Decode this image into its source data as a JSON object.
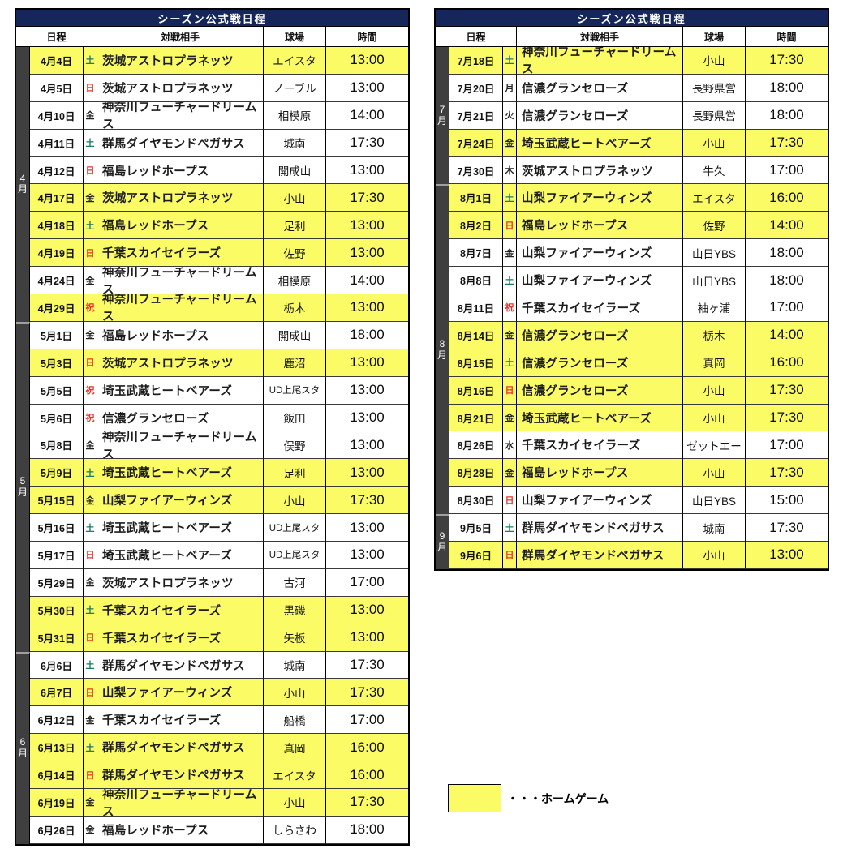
{
  "colors": {
    "title_bg": "#14265a",
    "title_text": "#ffffff",
    "home_row_bg": "#fbfb66",
    "away_row_bg": "#ffffff",
    "month_spine_bg": "#3f3f3f",
    "month_spine_text": "#ffffff",
    "saturday_text": "#1c7a66",
    "sunday_holiday_text": "#e8332b",
    "border": "#000000"
  },
  "legend": {
    "label": "・・・ホームゲーム",
    "swatch_color": "#fbfb66"
  },
  "tables": [
    {
      "title": "シーズン公式戦日程",
      "columns": {
        "date": "日程",
        "opponent": "対戦相手",
        "stadium": "球場",
        "time": "時間"
      },
      "months": [
        {
          "label": "4月",
          "rows": 10
        },
        {
          "label": "5月",
          "rows": 12
        },
        {
          "label": "6月",
          "rows": 7
        }
      ],
      "rows": [
        {
          "date": "4月4日",
          "day": "土",
          "day_type": "sat",
          "opponent": "茨城アストロプラネッツ",
          "stadium": "エイスタ",
          "time": "13:00",
          "home": true
        },
        {
          "date": "4月5日",
          "day": "日",
          "day_type": "sun",
          "opponent": "茨城アストロプラネッツ",
          "stadium": "ノーブル",
          "time": "13:00",
          "home": false
        },
        {
          "date": "4月10日",
          "day": "金",
          "day_type": "weekday",
          "opponent": "神奈川フューチャードリームス",
          "stadium": "相模原",
          "time": "14:00",
          "home": false
        },
        {
          "date": "4月11日",
          "day": "土",
          "day_type": "sat",
          "opponent": "群馬ダイヤモンドペガサス",
          "stadium": "城南",
          "time": "17:30",
          "home": false
        },
        {
          "date": "4月12日",
          "day": "日",
          "day_type": "sun",
          "opponent": "福島レッドホープス",
          "stadium": "開成山",
          "time": "13:00",
          "home": false
        },
        {
          "date": "4月17日",
          "day": "金",
          "day_type": "weekday",
          "opponent": "茨城アストロプラネッツ",
          "stadium": "小山",
          "time": "17:30",
          "home": true
        },
        {
          "date": "4月18日",
          "day": "土",
          "day_type": "sat",
          "opponent": "福島レッドホープス",
          "stadium": "足利",
          "time": "13:00",
          "home": true
        },
        {
          "date": "4月19日",
          "day": "日",
          "day_type": "sun",
          "opponent": "千葉スカイセイラーズ",
          "stadium": "佐野",
          "time": "13:00",
          "home": true
        },
        {
          "date": "4月24日",
          "day": "金",
          "day_type": "weekday",
          "opponent": "神奈川フューチャードリームス",
          "stadium": "相模原",
          "time": "14:00",
          "home": false
        },
        {
          "date": "4月29日",
          "day": "祝",
          "day_type": "holiday",
          "opponent": "神奈川フューチャードリームス",
          "stadium": "栃木",
          "time": "13:00",
          "home": true
        },
        {
          "date": "5月1日",
          "day": "金",
          "day_type": "weekday",
          "opponent": "福島レッドホープス",
          "stadium": "開成山",
          "time": "18:00",
          "home": false
        },
        {
          "date": "5月3日",
          "day": "日",
          "day_type": "sun",
          "opponent": "茨城アストロプラネッツ",
          "stadium": "鹿沼",
          "time": "13:00",
          "home": true
        },
        {
          "date": "5月5日",
          "day": "祝",
          "day_type": "holiday",
          "opponent": "埼玉武蔵ヒートベアーズ",
          "stadium": "UD上尾スタ",
          "time": "13:00",
          "home": false
        },
        {
          "date": "5月6日",
          "day": "祝",
          "day_type": "holiday",
          "opponent": "信濃グランセローズ",
          "stadium": "飯田",
          "time": "13:00",
          "home": false
        },
        {
          "date": "5月8日",
          "day": "金",
          "day_type": "weekday",
          "opponent": "神奈川フューチャードリームス",
          "stadium": "俣野",
          "time": "13:00",
          "home": false
        },
        {
          "date": "5月9日",
          "day": "土",
          "day_type": "sat",
          "opponent": "埼玉武蔵ヒートベアーズ",
          "stadium": "足利",
          "time": "13:00",
          "home": true
        },
        {
          "date": "5月15日",
          "day": "金",
          "day_type": "weekday",
          "opponent": "山梨ファイアーウィンズ",
          "stadium": "小山",
          "time": "17:30",
          "home": true
        },
        {
          "date": "5月16日",
          "day": "土",
          "day_type": "sat",
          "opponent": "埼玉武蔵ヒートベアーズ",
          "stadium": "UD上尾スタ",
          "time": "13:00",
          "home": false
        },
        {
          "date": "5月17日",
          "day": "日",
          "day_type": "sun",
          "opponent": "埼玉武蔵ヒートベアーズ",
          "stadium": "UD上尾スタ",
          "time": "13:00",
          "home": false
        },
        {
          "date": "5月29日",
          "day": "金",
          "day_type": "weekday",
          "opponent": "茨城アストロプラネッツ",
          "stadium": "古河",
          "time": "17:00",
          "home": false
        },
        {
          "date": "5月30日",
          "day": "土",
          "day_type": "sat",
          "opponent": "千葉スカイセイラーズ",
          "stadium": "黒磯",
          "time": "13:00",
          "home": true
        },
        {
          "date": "5月31日",
          "day": "日",
          "day_type": "sun",
          "opponent": "千葉スカイセイラーズ",
          "stadium": "矢板",
          "time": "13:00",
          "home": true
        },
        {
          "date": "6月6日",
          "day": "土",
          "day_type": "sat",
          "opponent": "群馬ダイヤモンドペガサス",
          "stadium": "城南",
          "time": "17:30",
          "home": false
        },
        {
          "date": "6月7日",
          "day": "日",
          "day_type": "sun",
          "opponent": "山梨ファイアーウィンズ",
          "stadium": "小山",
          "time": "17:30",
          "home": true
        },
        {
          "date": "6月12日",
          "day": "金",
          "day_type": "weekday",
          "opponent": "千葉スカイセイラーズ",
          "stadium": "船橋",
          "time": "17:00",
          "home": false
        },
        {
          "date": "6月13日",
          "day": "土",
          "day_type": "sat",
          "opponent": "群馬ダイヤモンドペガサス",
          "stadium": "真岡",
          "time": "16:00",
          "home": true
        },
        {
          "date": "6月14日",
          "day": "日",
          "day_type": "sun",
          "opponent": "群馬ダイヤモンドペガサス",
          "stadium": "エイスタ",
          "time": "16:00",
          "home": true
        },
        {
          "date": "6月19日",
          "day": "金",
          "day_type": "weekday",
          "opponent": "神奈川フューチャードリームス",
          "stadium": "小山",
          "time": "17:30",
          "home": true
        },
        {
          "date": "6月26日",
          "day": "金",
          "day_type": "weekday",
          "opponent": "福島レッドホープス",
          "stadium": "しらさわ",
          "time": "18:00",
          "home": false
        }
      ]
    },
    {
      "title": "シーズン公式戦日程",
      "columns": {
        "date": "日程",
        "opponent": "対戦相手",
        "stadium": "球場",
        "time": "時間"
      },
      "months": [
        {
          "label": "7月",
          "rows": 5
        },
        {
          "label": "8月",
          "rows": 12
        },
        {
          "label": "9月",
          "rows": 2
        }
      ],
      "rows": [
        {
          "date": "7月18日",
          "day": "土",
          "day_type": "sat",
          "opponent": "神奈川フューチャードリームス",
          "stadium": "小山",
          "time": "17:30",
          "home": true
        },
        {
          "date": "7月20日",
          "day": "月",
          "day_type": "weekday",
          "opponent": "信濃グランセローズ",
          "stadium": "長野県営",
          "time": "18:00",
          "home": false
        },
        {
          "date": "7月21日",
          "day": "火",
          "day_type": "weekday",
          "opponent": "信濃グランセローズ",
          "stadium": "長野県営",
          "time": "18:00",
          "home": false
        },
        {
          "date": "7月24日",
          "day": "金",
          "day_type": "weekday",
          "opponent": "埼玉武蔵ヒートベアーズ",
          "stadium": "小山",
          "time": "17:30",
          "home": true
        },
        {
          "date": "7月30日",
          "day": "木",
          "day_type": "weekday",
          "opponent": "茨城アストロプラネッツ",
          "stadium": "牛久",
          "time": "17:00",
          "home": false
        },
        {
          "date": "8月1日",
          "day": "土",
          "day_type": "sat",
          "opponent": "山梨ファイアーウィンズ",
          "stadium": "エイスタ",
          "time": "16:00",
          "home": true
        },
        {
          "date": "8月2日",
          "day": "日",
          "day_type": "sun",
          "opponent": "福島レッドホープス",
          "stadium": "佐野",
          "time": "14:00",
          "home": true
        },
        {
          "date": "8月7日",
          "day": "金",
          "day_type": "weekday",
          "opponent": "山梨ファイアーウィンズ",
          "stadium": "山日YBS",
          "time": "18:00",
          "home": false
        },
        {
          "date": "8月8日",
          "day": "土",
          "day_type": "sat",
          "opponent": "山梨ファイアーウィンズ",
          "stadium": "山日YBS",
          "time": "18:00",
          "home": false
        },
        {
          "date": "8月11日",
          "day": "祝",
          "day_type": "holiday",
          "opponent": "千葉スカイセイラーズ",
          "stadium": "袖ヶ浦",
          "time": "17:00",
          "home": false
        },
        {
          "date": "8月14日",
          "day": "金",
          "day_type": "weekday",
          "opponent": "信濃グランセローズ",
          "stadium": "栃木",
          "time": "14:00",
          "home": true
        },
        {
          "date": "8月15日",
          "day": "土",
          "day_type": "sat",
          "opponent": "信濃グランセローズ",
          "stadium": "真岡",
          "time": "16:00",
          "home": true
        },
        {
          "date": "8月16日",
          "day": "日",
          "day_type": "sun",
          "opponent": "信濃グランセローズ",
          "stadium": "小山",
          "time": "17:30",
          "home": true
        },
        {
          "date": "8月21日",
          "day": "金",
          "day_type": "weekday",
          "opponent": "埼玉武蔵ヒートベアーズ",
          "stadium": "小山",
          "time": "17:30",
          "home": true
        },
        {
          "date": "8月26日",
          "day": "水",
          "day_type": "weekday",
          "opponent": "千葉スカイセイラーズ",
          "stadium": "ゼットエー",
          "time": "17:00",
          "home": false
        },
        {
          "date": "8月28日",
          "day": "金",
          "day_type": "weekday",
          "opponent": "福島レッドホープス",
          "stadium": "小山",
          "time": "17:30",
          "home": true
        },
        {
          "date": "8月30日",
          "day": "日",
          "day_type": "sun",
          "opponent": "山梨ファイアーウィンズ",
          "stadium": "山日YBS",
          "time": "15:00",
          "home": false
        },
        {
          "date": "9月5日",
          "day": "土",
          "day_type": "sat",
          "opponent": "群馬ダイヤモンドペガサス",
          "stadium": "城南",
          "time": "17:30",
          "home": false
        },
        {
          "date": "9月6日",
          "day": "日",
          "day_type": "sun",
          "opponent": "群馬ダイヤモンドペガサス",
          "stadium": "小山",
          "time": "13:00",
          "home": true
        }
      ]
    }
  ]
}
